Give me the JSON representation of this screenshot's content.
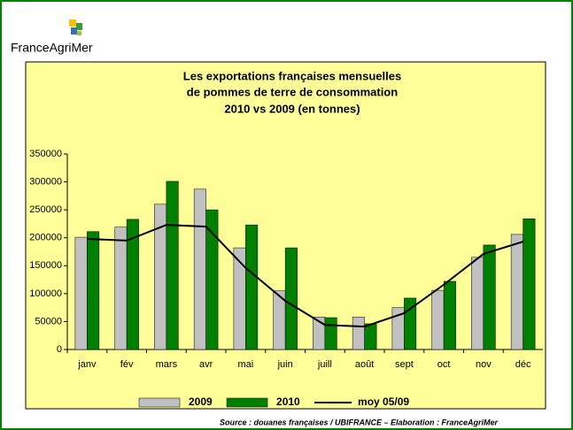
{
  "logo": "FranceAgriMer",
  "source": "Source : douanes françaises / UBIFRANCE – Elaboration : FranceAgriMer",
  "chart_data": {
    "type": "bar",
    "title": [
      "Les exportations françaises mensuelles",
      "de pommes de terre de consommation",
      "2010 vs 2009 (en tonnes)"
    ],
    "categories": [
      "janv",
      "fév",
      "mars",
      "avr",
      "mai",
      "juin",
      "juill",
      "août",
      "sept",
      "oct",
      "nov",
      "déc"
    ],
    "series": [
      {
        "name": "2009",
        "type": "bar",
        "color": "#c0c0c0",
        "values": [
          201000,
          219000,
          260000,
          287000,
          182000,
          105000,
          58000,
          58000,
          75000,
          106000,
          165000,
          206000
        ]
      },
      {
        "name": "2010",
        "type": "bar",
        "color": "#008000",
        "values": [
          211000,
          233000,
          301000,
          250000,
          223000,
          182000,
          57000,
          46000,
          92000,
          122000,
          187000,
          234000
        ]
      },
      {
        "name": "moy 05/09",
        "type": "line",
        "color": "#000000",
        "values": [
          198000,
          195000,
          223000,
          220000,
          146000,
          87000,
          44000,
          41000,
          65000,
          116000,
          171000,
          193000
        ]
      }
    ],
    "ylim": [
      0,
      350000
    ],
    "yticks": [
      0,
      50000,
      100000,
      150000,
      200000,
      250000,
      300000,
      350000
    ],
    "legend": "bottom"
  }
}
